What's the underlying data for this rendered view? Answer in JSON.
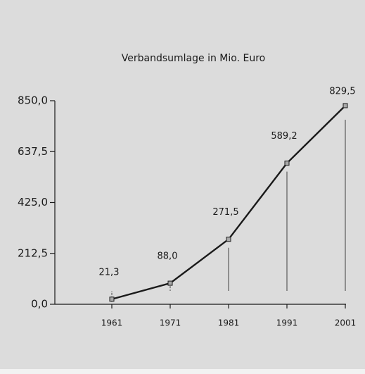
{
  "chart_data": {
    "type": "line",
    "title": "Verbandsumlage in Mio. Euro",
    "categories": [
      "1961",
      "1971",
      "1981",
      "1991",
      "2001"
    ],
    "series": [
      {
        "name": "Verbandsumlage",
        "color": "#1a1a1a",
        "values": [
          21.3,
          88.0,
          271.5,
          589.2,
          829.5
        ],
        "value_labels": [
          "21,3",
          "88,0",
          "271,5",
          "589,2",
          "829,5"
        ]
      }
    ],
    "ylim": [
      0,
      850
    ],
    "yticks": [
      {
        "value": 0,
        "label": "0,0"
      },
      {
        "value": 212.5,
        "label": "212,5"
      },
      {
        "value": 425,
        "label": "425,0"
      },
      {
        "value": 637.5,
        "label": "637,5"
      },
      {
        "value": 850,
        "label": "850,0"
      }
    ]
  }
}
